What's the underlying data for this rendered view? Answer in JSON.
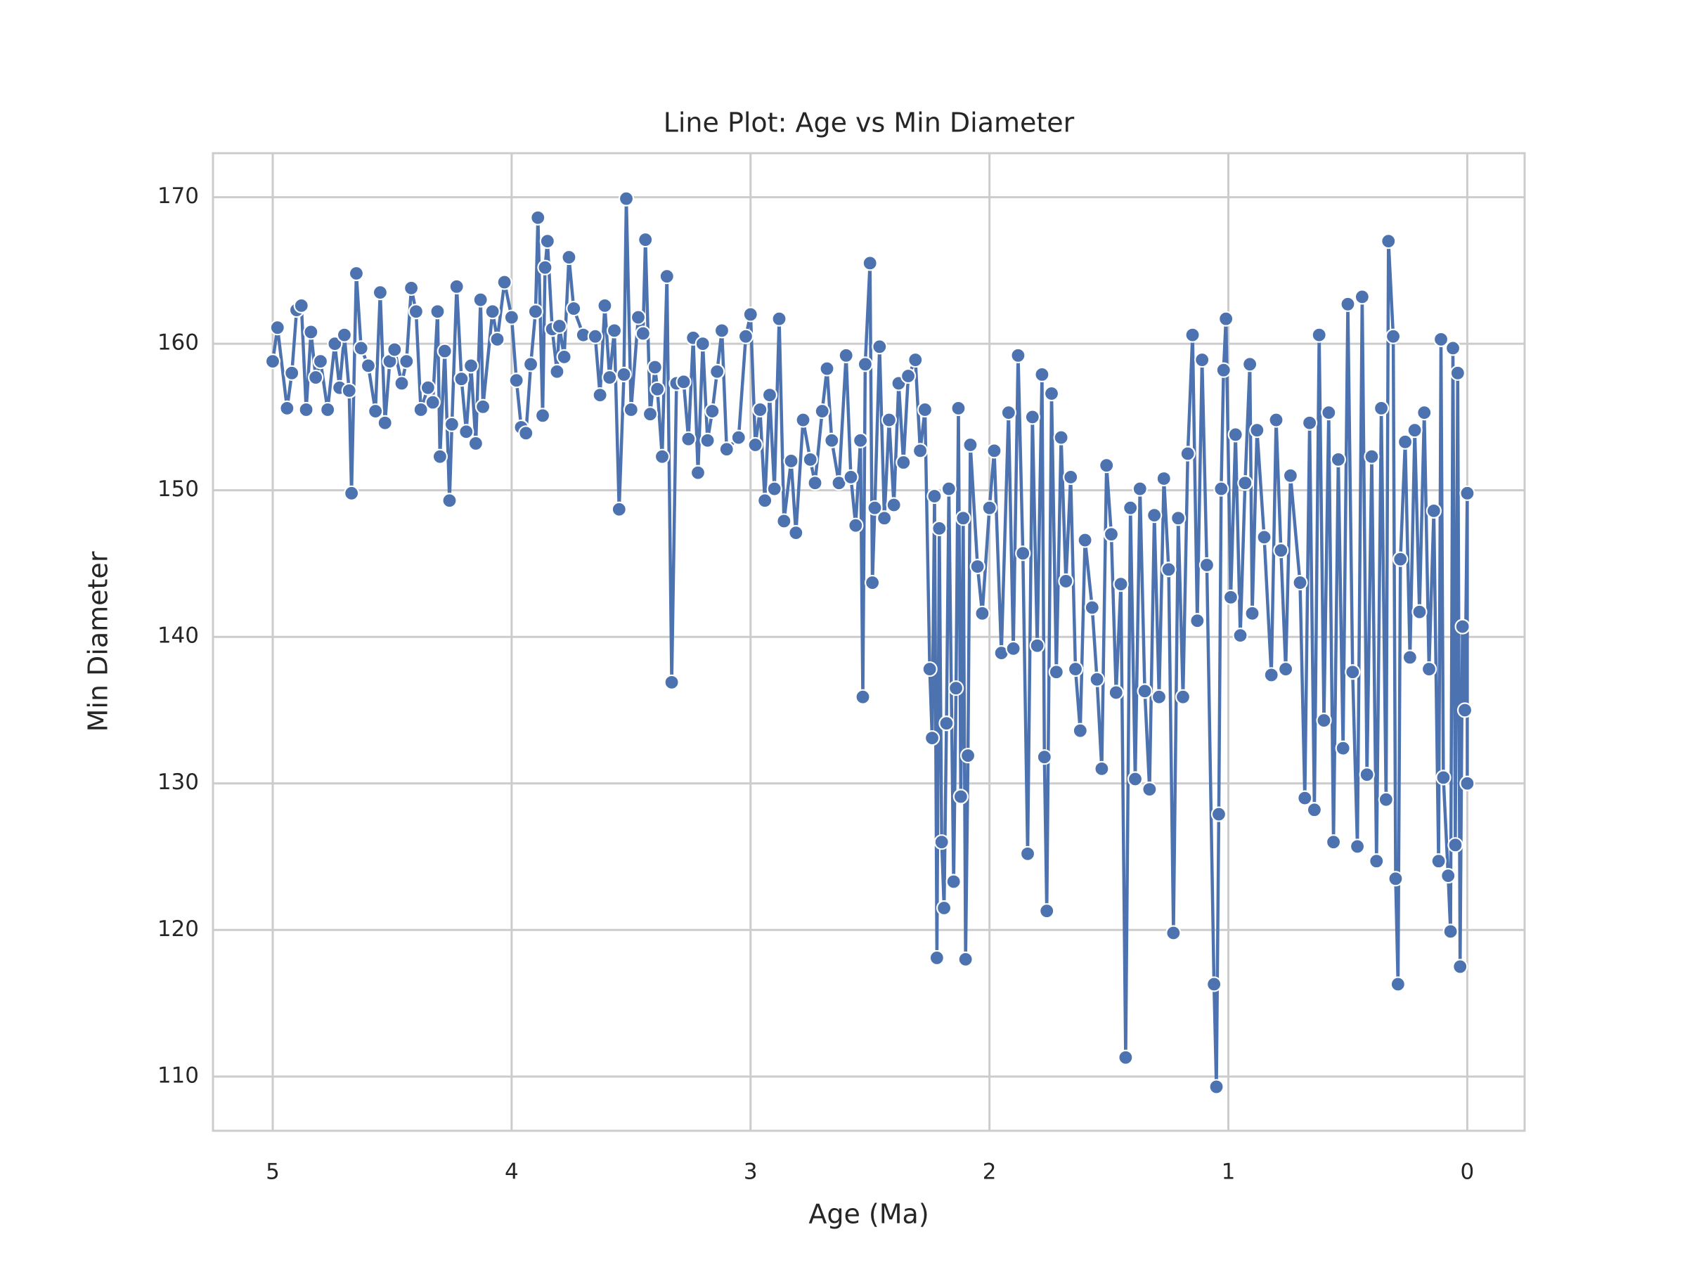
{
  "chart_data": {
    "type": "line",
    "title": "Line Plot: Age vs Min Diameter",
    "xlabel": "Age (Ma)",
    "ylabel": "Min Diameter",
    "color": "#4c72b0",
    "grid": true,
    "xlim": [
      5.25,
      -0.24
    ],
    "ylim": [
      106.3,
      173.0
    ],
    "xticks": [
      5,
      4,
      3,
      2,
      1,
      0
    ],
    "yticks": [
      110,
      120,
      130,
      140,
      150,
      160,
      170
    ],
    "x": [
      5.0,
      4.98,
      4.94,
      4.92,
      4.9,
      4.88,
      4.86,
      4.84,
      4.82,
      4.8,
      4.77,
      4.74,
      4.72,
      4.7,
      4.68,
      4.67,
      4.65,
      4.63,
      4.6,
      4.57,
      4.55,
      4.53,
      4.51,
      4.49,
      4.46,
      4.44,
      4.42,
      4.4,
      4.38,
      4.35,
      4.33,
      4.31,
      4.3,
      4.28,
      4.26,
      4.25,
      4.23,
      4.21,
      4.19,
      4.17,
      4.15,
      4.13,
      4.12,
      4.08,
      4.06,
      4.03,
      4.0,
      3.98,
      3.96,
      3.94,
      3.92,
      3.9,
      3.89,
      3.87,
      3.86,
      3.85,
      3.83,
      3.81,
      3.8,
      3.78,
      3.76,
      3.74,
      3.7,
      3.65,
      3.63,
      3.61,
      3.59,
      3.57,
      3.55,
      3.53,
      3.52,
      3.5,
      3.47,
      3.45,
      3.44,
      3.42,
      3.4,
      3.39,
      3.37,
      3.35,
      3.33,
      3.31,
      3.28,
      3.26,
      3.24,
      3.22,
      3.2,
      3.18,
      3.16,
      3.14,
      3.12,
      3.1,
      3.05,
      3.02,
      3.0,
      2.98,
      2.96,
      2.94,
      2.92,
      2.9,
      2.88,
      2.86,
      2.83,
      2.81,
      2.78,
      2.75,
      2.73,
      2.7,
      2.68,
      2.66,
      2.63,
      2.6,
      2.58,
      2.56,
      2.54,
      2.53,
      2.52,
      2.5,
      2.49,
      2.48,
      2.46,
      2.44,
      2.42,
      2.4,
      2.38,
      2.36,
      2.34,
      2.31,
      2.29,
      2.27,
      2.25,
      2.24,
      2.23,
      2.22,
      2.21,
      2.2,
      2.19,
      2.18,
      2.17,
      2.15,
      2.14,
      2.13,
      2.12,
      2.11,
      2.1,
      2.09,
      2.08,
      2.05,
      2.03,
      2.0,
      1.98,
      1.95,
      1.92,
      1.9,
      1.88,
      1.86,
      1.84,
      1.82,
      1.8,
      1.78,
      1.77,
      1.76,
      1.74,
      1.72,
      1.7,
      1.68,
      1.66,
      1.64,
      1.62,
      1.6,
      1.57,
      1.55,
      1.53,
      1.51,
      1.49,
      1.47,
      1.45,
      1.43,
      1.41,
      1.39,
      1.37,
      1.35,
      1.33,
      1.31,
      1.29,
      1.27,
      1.25,
      1.23,
      1.21,
      1.19,
      1.17,
      1.15,
      1.13,
      1.11,
      1.09,
      1.06,
      1.05,
      1.04,
      1.03,
      1.02,
      1.01,
      0.99,
      0.97,
      0.95,
      0.93,
      0.91,
      0.9,
      0.88,
      0.85,
      0.82,
      0.8,
      0.78,
      0.76,
      0.74,
      0.7,
      0.68,
      0.66,
      0.64,
      0.62,
      0.6,
      0.58,
      0.56,
      0.54,
      0.52,
      0.5,
      0.48,
      0.46,
      0.44,
      0.42,
      0.4,
      0.38,
      0.36,
      0.34,
      0.33,
      0.31,
      0.3,
      0.29,
      0.28,
      0.26,
      0.24,
      0.22,
      0.2,
      0.18,
      0.16,
      0.14,
      0.12,
      0.11,
      0.1,
      0.08,
      0.07,
      0.06,
      0.05,
      0.04,
      0.03,
      0.02,
      0.01,
      0.0,
      0.0
    ],
    "values": [
      158.8,
      161.1,
      155.6,
      158,
      162.3,
      162.6,
      155.5,
      160.8,
      157.7,
      158.8,
      155.5,
      160,
      157,
      160.6,
      156.8,
      149.8,
      164.8,
      159.7,
      158.5,
      155.4,
      163.5,
      154.6,
      158.8,
      159.6,
      157.3,
      158.8,
      163.8,
      162.2,
      155.5,
      157,
      156,
      162.2,
      152.3,
      159.5,
      149.3,
      154.5,
      163.9,
      157.6,
      154,
      158.5,
      153.2,
      163,
      155.7,
      162.2,
      160.3,
      164.2,
      161.8,
      157.5,
      154.3,
      153.9,
      158.6,
      162.2,
      168.6,
      155.1,
      165.2,
      167,
      161,
      158.1,
      161.2,
      159.1,
      165.9,
      162.4,
      160.6,
      160.5,
      156.5,
      162.6,
      157.7,
      160.9,
      148.7,
      157.9,
      169.9,
      155.5,
      161.8,
      160.7,
      167.1,
      155.2,
      158.4,
      156.9,
      152.3,
      164.6,
      136.9,
      157.3,
      157.4,
      153.5,
      160.4,
      151.2,
      160,
      153.4,
      155.4,
      158.1,
      160.9,
      152.8,
      153.6,
      160.5,
      162,
      153.1,
      155.5,
      149.3,
      156.5,
      150.1,
      161.7,
      147.9,
      152,
      147.1,
      154.8,
      152.1,
      150.5,
      155.4,
      158.3,
      153.4,
      150.5,
      159.2,
      150.9,
      147.6,
      153.4,
      135.9,
      158.6,
      165.5,
      143.7,
      148.8,
      159.8,
      148.1,
      154.8,
      149,
      157.3,
      151.9,
      157.8,
      158.9,
      152.7,
      155.5,
      137.8,
      133.1,
      149.6,
      118.1,
      147.4,
      126,
      121.5,
      134.1,
      150.1,
      123.3,
      136.5,
      155.6,
      129.1,
      148.1,
      118,
      131.9,
      153.1,
      144.8,
      141.6,
      148.8,
      152.7,
      138.9,
      155.3,
      139.2,
      159.2,
      145.7,
      125.2,
      155,
      139.4,
      157.9,
      131.8,
      121.3,
      156.6,
      137.6,
      153.6,
      143.8,
      150.9,
      137.8,
      133.6,
      146.6,
      142,
      137.1,
      131,
      151.7,
      147,
      136.2,
      143.6,
      111.3,
      148.8,
      130.3,
      150.1,
      136.3,
      129.6,
      148.3,
      135.9,
      150.8,
      144.6,
      119.8,
      148.1,
      135.9,
      152.5,
      160.6,
      141.1,
      158.9,
      144.9,
      116.3,
      109.3,
      127.9,
      150.1,
      158.2,
      161.7,
      142.7,
      153.8,
      140.1,
      150.5,
      158.6,
      141.6,
      154.1,
      146.8,
      137.4,
      154.8,
      145.9,
      137.8,
      151,
      143.7,
      129,
      154.6,
      128.2,
      160.6,
      134.3,
      155.3,
      126,
      152.1,
      132.4,
      162.7,
      137.6,
      125.7,
      163.2,
      130.6,
      152.3,
      124.7,
      155.6,
      128.9,
      167,
      160.5,
      123.5,
      116.3,
      145.3,
      153.3,
      138.6,
      154.1,
      141.7,
      155.3,
      137.8,
      148.6,
      124.7,
      160.3,
      130.4,
      123.7,
      119.9,
      159.7,
      125.8,
      158,
      117.5,
      140.7,
      135,
      149.8,
      130
    ]
  }
}
